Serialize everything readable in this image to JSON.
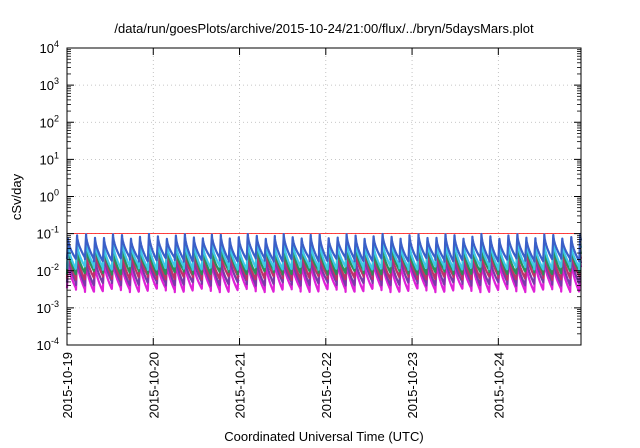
{
  "chart_data": {
    "type": "line",
    "title": "/data/run/goesPlots/archive/2015-10-24/21:00/flux/../bryn/5daysMars.plot",
    "xlabel": "Coordinated Universal Time (UTC)",
    "ylabel": "cSv/day",
    "yscale": "log",
    "ylim": [
      0.0001,
      10000
    ],
    "y_ticks": [
      {
        "base": "10",
        "exp": "-4",
        "value": 0.0001
      },
      {
        "base": "10",
        "exp": "-3",
        "value": 0.001
      },
      {
        "base": "10",
        "exp": "-2",
        "value": 0.01
      },
      {
        "base": "10",
        "exp": "-1",
        "value": 0.1
      },
      {
        "base": "10",
        "exp": "0",
        "value": 1
      },
      {
        "base": "10",
        "exp": "1",
        "value": 10
      },
      {
        "base": "10",
        "exp": "2",
        "value": 100
      },
      {
        "base": "10",
        "exp": "3",
        "value": 1000
      },
      {
        "base": "10",
        "exp": "4",
        "value": 10000
      }
    ],
    "xlim": [
      "2015-10-19",
      "2015-10-24T23:00"
    ],
    "x_ticks": [
      "2015-10-19",
      "2015-10-20",
      "2015-10-21",
      "2015-10-22",
      "2015-10-23",
      "2015-10-24"
    ],
    "grid": true,
    "reference_line": {
      "value": 0.1,
      "color": "#ff0000"
    },
    "period_hours": 2.5,
    "series": [
      {
        "color": "#3a5fc8",
        "peak": 0.085,
        "trough": 0.02
      },
      {
        "color": "#3ec8e8",
        "peak": 0.06,
        "trough": 0.012
      },
      {
        "color": "#2a8f5a",
        "peak": 0.045,
        "trough": 0.009
      },
      {
        "color": "#c0306a",
        "peak": 0.035,
        "trough": 0.0065
      },
      {
        "color": "#7a3aa8",
        "peak": 0.025,
        "trough": 0.0045
      },
      {
        "color": "#e020d8",
        "peak": 0.018,
        "trough": 0.003
      }
    ]
  }
}
